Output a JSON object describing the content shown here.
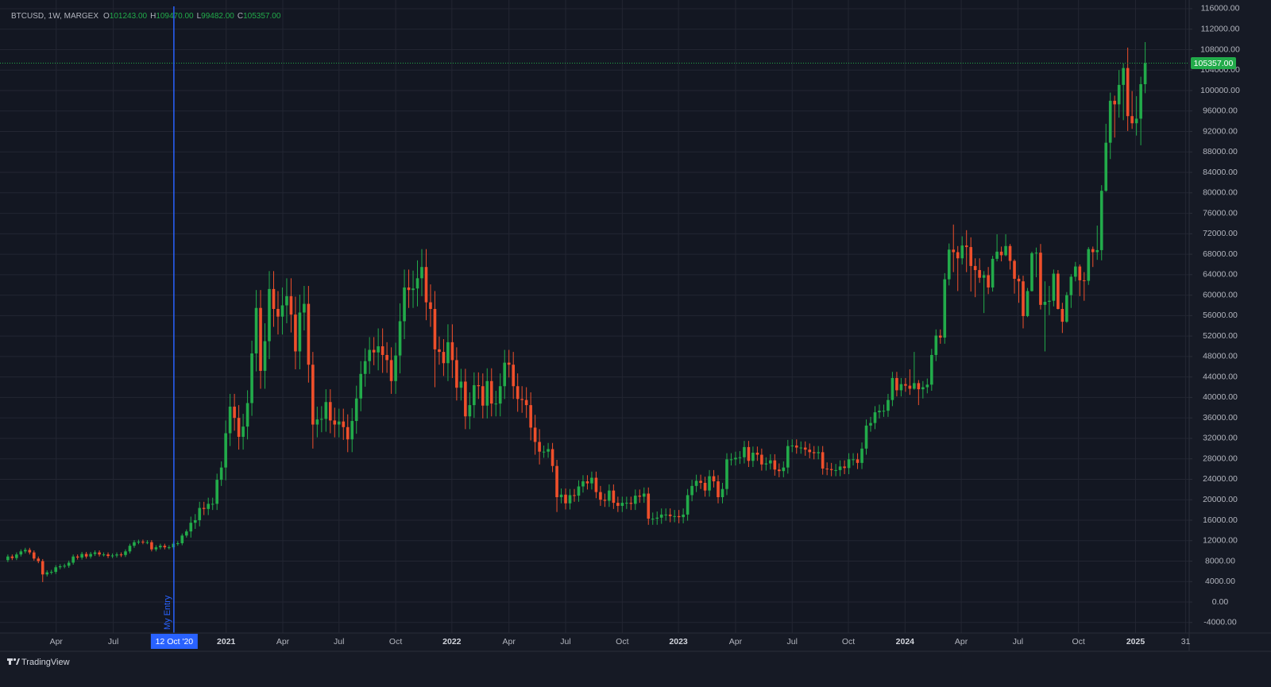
{
  "chart_data": {
    "type": "candlestick",
    "symbol": "BTCUSD, 1W, MARGEX",
    "ohlc_legend": [
      {
        "key": "O",
        "value": "101243.00"
      },
      {
        "key": "H",
        "value": "109470.00"
      },
      {
        "key": "L",
        "value": "99482.00"
      },
      {
        "key": "C",
        "value": "105357.00"
      }
    ],
    "up_color": "#22ab4a",
    "down_color": "#ef4f2b",
    "grid": true,
    "open": [
      8200,
      8900,
      8600,
      9300,
      9900,
      10200,
      9700,
      8500,
      8000,
      5400,
      5800,
      5900,
      6800,
      7000,
      7100,
      7700,
      8900,
      8700,
      9400,
      8900,
      9400,
      9700,
      9300,
      9300,
      9000,
      9100,
      9300,
      9200,
      9900,
      11000,
      11700,
      11800,
      11700,
      11700,
      10300,
      10700,
      11000,
      10700,
      10700,
      11400,
      11500,
      13000,
      13800,
      15500,
      16000,
      18400,
      18200,
      19200,
      19200,
      23900,
      26300,
      33000,
      38200,
      36000,
      32300,
      34300,
      38900,
      48600,
      57500,
      45200,
      51000,
      61200,
      57300,
      55800,
      58000,
      59800,
      56200,
      49000,
      56600,
      58300,
      46400,
      34700,
      35700,
      35800,
      39100,
      35500,
      34700,
      35300,
      34200,
      31800,
      35400,
      39800,
      44600,
      47100,
      49300,
      48800,
      50000,
      48300,
      47300,
      43200,
      48200,
      54900,
      61500,
      61000,
      61300,
      63300,
      65500,
      58600,
      57300,
      49400,
      48900,
      46700,
      50800,
      47300,
      41900,
      43100,
      36300,
      38500,
      42400,
      42200,
      38400,
      43200,
      38800,
      38800,
      42200,
      46800,
      46400,
      42200,
      39700,
      39500,
      38500,
      34100,
      31300,
      29400,
      29400,
      29900,
      26600,
      20500,
      21000,
      19300,
      20900,
      20800,
      22600,
      23600,
      23200,
      24300,
      21500,
      20000,
      19800,
      21800,
      19400,
      18800,
      19400,
      19400,
      19200,
      20800,
      20600,
      21200,
      16300,
      16300,
      16500,
      17100,
      17100,
      16800,
      16800,
      16600,
      17100,
      20900,
      22700,
      23700,
      23300,
      21800,
      24600,
      23600,
      20500,
      22100,
      27900,
      27900,
      28200,
      28300,
      30300,
      27600,
      29200,
      28800,
      26900,
      27100,
      27700,
      25900,
      25600,
      26300,
      30500,
      30600,
      30200,
      30200,
      29800,
      29300,
      29100,
      29300,
      26100,
      26000,
      25800,
      25800,
      26500,
      26200,
      27900,
      27900,
      27200,
      30000,
      34500,
      35000,
      37100,
      37400,
      37400,
      39500,
      43800,
      41400,
      42600,
      42300,
      41700,
      42800,
      41600,
      42000,
      42500,
      48300,
      52100,
      51700,
      63100,
      68900,
      68400,
      67200,
      69700,
      69400,
      65700,
      64900,
      63400,
      63900,
      61500,
      67100,
      68500,
      67800,
      69600,
      66700,
      63200,
      62700,
      55900,
      60800,
      68200,
      68300,
      58100,
      58700,
      58900,
      64200,
      57300,
      54800,
      60000,
      63600,
      65600,
      62900,
      62800,
      69000,
      68400,
      68800,
      80400,
      89800,
      98000,
      97300,
      101100,
      104400,
      95000,
      93600,
      94500,
      101243
    ],
    "high": [
      9300,
      9300,
      9700,
      10300,
      10600,
      10600,
      10100,
      8900,
      8400,
      6200,
      6300,
      7200,
      7400,
      7500,
      8100,
      9300,
      9300,
      9800,
      9800,
      9800,
      10100,
      10100,
      9700,
      9700,
      9500,
      9700,
      9700,
      10300,
      11400,
      12100,
      12200,
      12200,
      12100,
      12100,
      11100,
      11400,
      11400,
      11100,
      11800,
      11900,
      13400,
      14200,
      16700,
      17200,
      19600,
      19600,
      20400,
      20400,
      25100,
      27500,
      35500,
      40700,
      40700,
      38500,
      36800,
      41400,
      51100,
      61000,
      61000,
      54500,
      64700,
      64700,
      60800,
      61500,
      63300,
      63300,
      59700,
      60100,
      61800,
      61800,
      48900,
      38200,
      38300,
      41600,
      41600,
      38000,
      37800,
      37800,
      36700,
      37900,
      42300,
      47100,
      49600,
      51800,
      51800,
      53500,
      53500,
      50800,
      49800,
      50700,
      58400,
      65000,
      65000,
      64800,
      66800,
      69000,
      69000,
      62100,
      60800,
      51900,
      51400,
      54300,
      54300,
      49800,
      45600,
      45600,
      41000,
      44900,
      44900,
      44700,
      45700,
      45700,
      41300,
      44700,
      49300,
      49300,
      48900,
      44700,
      42200,
      42000,
      41000,
      36600,
      33800,
      30600,
      31100,
      31100,
      27800,
      22200,
      22200,
      22100,
      22100,
      23800,
      24800,
      24800,
      25500,
      25500,
      22700,
      21200,
      23000,
      23000,
      20600,
      20600,
      20600,
      20600,
      22000,
      22000,
      22400,
      22400,
      17500,
      17700,
      18300,
      18300,
      18300,
      18000,
      18000,
      18300,
      22100,
      23900,
      24900,
      24900,
      24500,
      25800,
      25800,
      24800,
      23300,
      29100,
      29100,
      29400,
      29500,
      31500,
      31500,
      30400,
      30400,
      30000,
      28300,
      28900,
      28900,
      27100,
      27500,
      31700,
      31800,
      31800,
      31400,
      31400,
      31000,
      30500,
      30500,
      30500,
      27300,
      27200,
      27000,
      27700,
      27700,
      29100,
      29100,
      29100,
      31200,
      35700,
      36200,
      38300,
      38600,
      38600,
      40700,
      45000,
      45000,
      43800,
      43800,
      45500,
      48900,
      43400,
      43200,
      43700,
      49500,
      53300,
      53300,
      64300,
      70100,
      73800,
      69600,
      71500,
      72700,
      71300,
      67200,
      67200,
      64700,
      65500,
      67700,
      71900,
      69500,
      71900,
      70000,
      67000,
      63900,
      63800,
      61400,
      68500,
      69300,
      70000,
      62700,
      61800,
      65000,
      64900,
      58500,
      60600,
      64100,
      66500,
      66000,
      64500,
      69400,
      69500,
      73600,
      81500,
      93500,
      99600,
      99000,
      104000,
      105300,
      108400,
      99900,
      98900,
      102700,
      109470
    ],
    "low": [
      7800,
      8200,
      8200,
      8900,
      9500,
      9300,
      8100,
      7600,
      3900,
      5000,
      5400,
      5500,
      6400,
      6600,
      6700,
      7300,
      8300,
      8300,
      8500,
      8500,
      9000,
      8900,
      8900,
      8600,
      8600,
      8700,
      8800,
      8800,
      9500,
      10600,
      11300,
      11300,
      11300,
      9900,
      9900,
      10300,
      10300,
      10300,
      10300,
      11000,
      11100,
      12600,
      12600,
      14300,
      14800,
      17000,
      17000,
      18000,
      18000,
      22700,
      23800,
      30500,
      33500,
      29800,
      29800,
      31800,
      36400,
      45100,
      41700,
      41700,
      47500,
      53800,
      52300,
      52300,
      54500,
      52700,
      45500,
      45500,
      53100,
      42900,
      30000,
      32200,
      33200,
      33300,
      33000,
      32200,
      32200,
      31700,
      29300,
      29300,
      32900,
      37300,
      42100,
      44600,
      46300,
      45300,
      44800,
      44800,
      40700,
      40700,
      44700,
      51400,
      57500,
      57500,
      57800,
      59800,
      55100,
      53800,
      42000,
      46400,
      44200,
      43200,
      43800,
      39400,
      39400,
      33800,
      33800,
      36000,
      39700,
      35900,
      35900,
      36300,
      36300,
      36300,
      39700,
      43900,
      39700,
      37200,
      37000,
      36000,
      31600,
      28800,
      26900,
      28200,
      28200,
      25400,
      17600,
      19300,
      18100,
      18100,
      19600,
      19600,
      21400,
      22000,
      22000,
      20300,
      18800,
      18600,
      18600,
      18200,
      17600,
      17600,
      18200,
      18000,
      18000,
      19400,
      19400,
      15100,
      15100,
      15100,
      15300,
      15900,
      15600,
      15600,
      15400,
      15400,
      15900,
      19700,
      21500,
      22100,
      20600,
      20600,
      22400,
      19300,
      19300,
      20900,
      26700,
      26700,
      27000,
      27100,
      26400,
      26400,
      27600,
      25700,
      25700,
      25900,
      24700,
      24400,
      24400,
      25100,
      29300,
      29000,
      29000,
      28600,
      28100,
      27900,
      27900,
      24900,
      24800,
      24600,
      24600,
      24600,
      25000,
      25000,
      26700,
      26000,
      26000,
      28800,
      33300,
      33800,
      35900,
      36200,
      36200,
      38300,
      40200,
      40200,
      41100,
      40500,
      41500,
      38500,
      39800,
      40800,
      41300,
      47100,
      50500,
      50500,
      61900,
      64500,
      60800,
      66000,
      64500,
      60700,
      59600,
      62400,
      56500,
      60200,
      60700,
      66600,
      66600,
      67600,
      65000,
      60300,
      58500,
      53500,
      55700,
      60700,
      63500,
      57200,
      49000,
      56100,
      57800,
      57200,
      52600,
      54600,
      57500,
      62700,
      59800,
      58900,
      62000,
      65500,
      66900,
      66800,
      80200,
      86600,
      90800,
      94700,
      94200,
      92100,
      92500,
      91200,
      89300,
      99482
    ],
    "close": [
      8900,
      8600,
      9300,
      9900,
      10200,
      9700,
      8500,
      8000,
      5400,
      5800,
      5900,
      6800,
      7000,
      7100,
      7700,
      8900,
      8700,
      9400,
      8900,
      9400,
      9700,
      9300,
      9300,
      9000,
      9100,
      9300,
      9200,
      9900,
      11000,
      11700,
      11800,
      11700,
      11700,
      10300,
      10700,
      11000,
      10700,
      10700,
      11400,
      11500,
      13000,
      13800,
      15500,
      16000,
      18400,
      18200,
      19200,
      19200,
      23900,
      26300,
      33000,
      38200,
      36000,
      32300,
      34300,
      38900,
      48600,
      57500,
      45200,
      51000,
      61200,
      57300,
      55800,
      58000,
      59800,
      56200,
      49000,
      56600,
      58300,
      46400,
      34700,
      35700,
      35800,
      39100,
      35500,
      34700,
      35300,
      34200,
      31800,
      35400,
      39800,
      44600,
      47100,
      49300,
      48800,
      50000,
      48300,
      47300,
      43200,
      48200,
      54900,
      61500,
      61000,
      61300,
      63300,
      65500,
      58600,
      57300,
      49400,
      48900,
      46700,
      50800,
      47300,
      41900,
      43100,
      36300,
      38500,
      42400,
      42200,
      38400,
      43200,
      38800,
      38800,
      42200,
      46800,
      46400,
      42200,
      39700,
      39500,
      38500,
      34100,
      31300,
      29400,
      29400,
      29900,
      26600,
      20500,
      21000,
      19300,
      20900,
      20800,
      22600,
      23600,
      23200,
      24300,
      21500,
      20000,
      19800,
      21800,
      19400,
      18800,
      19400,
      19400,
      19200,
      20800,
      20600,
      21200,
      16300,
      16300,
      16500,
      17100,
      17100,
      16800,
      16800,
      16600,
      17100,
      20900,
      22700,
      23700,
      23300,
      21800,
      24600,
      23600,
      20500,
      22100,
      27900,
      27900,
      28200,
      28300,
      30300,
      27600,
      29200,
      28800,
      26900,
      27100,
      27700,
      25900,
      25600,
      26300,
      30500,
      30600,
      30200,
      30200,
      29800,
      29300,
      29100,
      29300,
      26100,
      26000,
      25800,
      25800,
      26500,
      26200,
      27900,
      27900,
      27200,
      30000,
      34500,
      35000,
      37100,
      37400,
      37400,
      39500,
      43800,
      41400,
      42600,
      42300,
      41700,
      42800,
      41600,
      42000,
      42500,
      48300,
      52100,
      51700,
      63100,
      68900,
      68400,
      67200,
      69700,
      69400,
      65700,
      64900,
      63400,
      63900,
      61500,
      67100,
      68500,
      67800,
      69600,
      66700,
      63200,
      62700,
      55900,
      60800,
      68200,
      68300,
      58100,
      58700,
      58900,
      64200,
      57300,
      54800,
      60000,
      63600,
      65600,
      62900,
      62800,
      69000,
      68400,
      68800,
      80400,
      89800,
      98000,
      97300,
      101100,
      104400,
      95000,
      93600,
      94500,
      101243,
      105357
    ],
    "last_price_label": "105357.00",
    "xlim": [
      -1.8,
      271.1
    ],
    "xticks": [
      {
        "value": 11.1,
        "label": "Apr"
      },
      {
        "value": 24.2,
        "label": "Jul"
      },
      {
        "value": 50.1,
        "label": "2021"
      },
      {
        "value": 63.1,
        "label": "Apr"
      },
      {
        "value": 76.0,
        "label": "Jul"
      },
      {
        "value": 89.0,
        "label": "Oct"
      },
      {
        "value": 101.9,
        "label": "2022"
      },
      {
        "value": 115.0,
        "label": "Apr"
      },
      {
        "value": 128.0,
        "label": "Jul"
      },
      {
        "value": 141.0,
        "label": "Oct"
      },
      {
        "value": 153.9,
        "label": "2023"
      },
      {
        "value": 167.0,
        "label": "Apr"
      },
      {
        "value": 180.0,
        "label": "Jul"
      },
      {
        "value": 192.9,
        "label": "Oct"
      },
      {
        "value": 205.9,
        "label": "2024"
      },
      {
        "value": 218.8,
        "label": "Apr"
      },
      {
        "value": 231.8,
        "label": "Jul"
      },
      {
        "value": 245.7,
        "label": "Oct"
      },
      {
        "value": 258.8,
        "label": "2025"
      },
      {
        "value": 270.3,
        "label": "31"
      }
    ],
    "marker": {
      "at": 38.1,
      "text": "My Entry",
      "date_label": "12 Oct '20"
    },
    "ylim": [
      -6050,
      117700
    ],
    "yticks": [
      {
        "value": -4000,
        "label": "-4000.00"
      },
      {
        "value": 0,
        "label": "0.00"
      },
      {
        "value": 4000,
        "label": "4000.00"
      },
      {
        "value": 8000,
        "label": "8000.00"
      },
      {
        "value": 12000,
        "label": "12000.00"
      },
      {
        "value": 16000,
        "label": "16000.00"
      },
      {
        "value": 20000,
        "label": "20000.00"
      },
      {
        "value": 24000,
        "label": "24000.00"
      },
      {
        "value": 28000,
        "label": "28000.00"
      },
      {
        "value": 32000,
        "label": "32000.00"
      },
      {
        "value": 36000,
        "label": "36000.00"
      },
      {
        "value": 40000,
        "label": "40000.00"
      },
      {
        "value": 44000,
        "label": "44000.00"
      },
      {
        "value": 48000,
        "label": "48000.00"
      },
      {
        "value": 52000,
        "label": "52000.00"
      },
      {
        "value": 56000,
        "label": "56000.00"
      },
      {
        "value": 60000,
        "label": "60000.00"
      },
      {
        "value": 64000,
        "label": "64000.00"
      },
      {
        "value": 68000,
        "label": "68000.00"
      },
      {
        "value": 72000,
        "label": "72000.00"
      },
      {
        "value": 76000,
        "label": "76000.00"
      },
      {
        "value": 80000,
        "label": "80000.00"
      },
      {
        "value": 84000,
        "label": "84000.00"
      },
      {
        "value": 88000,
        "label": "88000.00"
      },
      {
        "value": 92000,
        "label": "92000.00"
      },
      {
        "value": 96000,
        "label": "96000.00"
      },
      {
        "value": 100000,
        "label": "100000.00"
      },
      {
        "value": 104000,
        "label": "104000.00"
      },
      {
        "value": 108000,
        "label": "108000.00"
      },
      {
        "value": 112000,
        "label": "112000.00"
      },
      {
        "value": 116000,
        "label": "116000.00"
      }
    ],
    "watermark": "TradingView"
  }
}
